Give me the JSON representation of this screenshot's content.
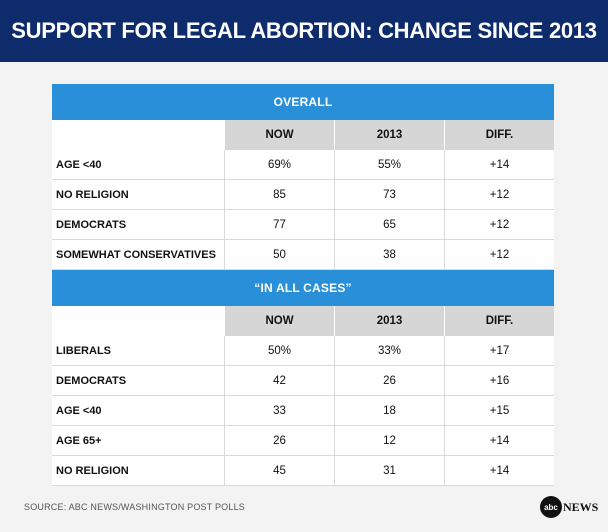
{
  "header": {
    "title": "SUPPORT FOR LEGAL ABORTION: CHANGE SINCE 2013"
  },
  "footer": {
    "source": "SOURCE: ABC NEWS/WASHINGTON POST POLLS",
    "logo_disc": "abc",
    "logo_text": "NEWS"
  },
  "colors": {
    "title_bg": "#0e2b6b",
    "section_bg": "#2a8fd9",
    "colhead_bg": "#d6d6d6"
  },
  "chart_data": {
    "type": "table",
    "title": "SUPPORT FOR LEGAL ABORTION: CHANGE SINCE 2013",
    "sections": [
      {
        "name": "OVERALL",
        "columns": [
          "NOW",
          "2013",
          "DIFF."
        ],
        "rows": [
          {
            "label": "AGE <40",
            "values": [
              "69%",
              "55%",
              "+14"
            ]
          },
          {
            "label": "NO RELIGION",
            "values": [
              "85",
              "73",
              "+12"
            ]
          },
          {
            "label": "DEMOCRATS",
            "values": [
              "77",
              "65",
              "+12"
            ]
          },
          {
            "label": "SOMEWHAT CONSERVATIVES",
            "values": [
              "50",
              "38",
              "+12"
            ]
          }
        ]
      },
      {
        "name": "“IN ALL CASES”",
        "columns": [
          "NOW",
          "2013",
          "DIFF."
        ],
        "rows": [
          {
            "label": "LIBERALS",
            "values": [
              "50%",
              "33%",
              "+17"
            ]
          },
          {
            "label": "DEMOCRATS",
            "values": [
              "42",
              "26",
              "+16"
            ]
          },
          {
            "label": "AGE <40",
            "values": [
              "33",
              "18",
              "+15"
            ]
          },
          {
            "label": "AGE 65+",
            "values": [
              "26",
              "12",
              "+14"
            ]
          },
          {
            "label": "NO RELIGION",
            "values": [
              "45",
              "31",
              "+14"
            ]
          }
        ]
      }
    ]
  }
}
